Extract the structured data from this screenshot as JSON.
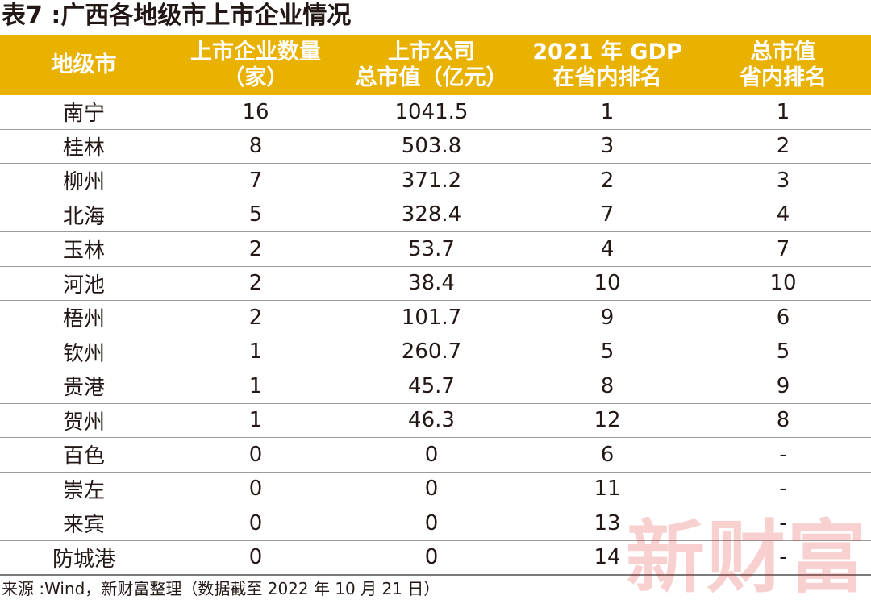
{
  "title": "表7 :广西各地级市上市企业情况",
  "headers": [
    [
      "地级市"
    ],
    [
      "上市企业数量",
      "（家）"
    ],
    [
      "上市公司",
      "总市值（亿元）"
    ],
    [
      "2021 年 GDP",
      "在省内排名"
    ],
    [
      "总市值",
      "省内排名"
    ]
  ],
  "rows": [
    [
      "南宁",
      "16",
      "1041.5",
      "1",
      "1"
    ],
    [
      "桂林",
      "8",
      "503.8",
      "3",
      "2"
    ],
    [
      "柳州",
      "7",
      "371.2",
      "2",
      "3"
    ],
    [
      "北海",
      "5",
      "328.4",
      "7",
      "4"
    ],
    [
      "玉林",
      "2",
      "53.7",
      "4",
      "7"
    ],
    [
      "河池",
      "2",
      "38.4",
      "10",
      "10"
    ],
    [
      "梧州",
      "2",
      "101.7",
      "9",
      "6"
    ],
    [
      "钦州",
      "1",
      "260.7",
      "5",
      "5"
    ],
    [
      "贵港",
      "1",
      "45.7",
      "8",
      "9"
    ],
    [
      "贺州",
      "1",
      "46.3",
      "12",
      "8"
    ],
    [
      "百色",
      "0",
      "0",
      "6",
      "-"
    ],
    [
      "崇左",
      "0",
      "0",
      "11",
      "-"
    ],
    [
      "来宾",
      "0",
      "0",
      "13",
      "-"
    ],
    [
      "防城港",
      "0",
      "0",
      "14",
      "-"
    ]
  ],
  "source": "来源 :Wind，新财富整理（数据截至 2022 年 10 月 21 日）",
  "watermark": "新财富",
  "colors": {
    "header_bg": "#e9b100",
    "header_text": "#ffffff",
    "watermark": "#e01a1a"
  }
}
